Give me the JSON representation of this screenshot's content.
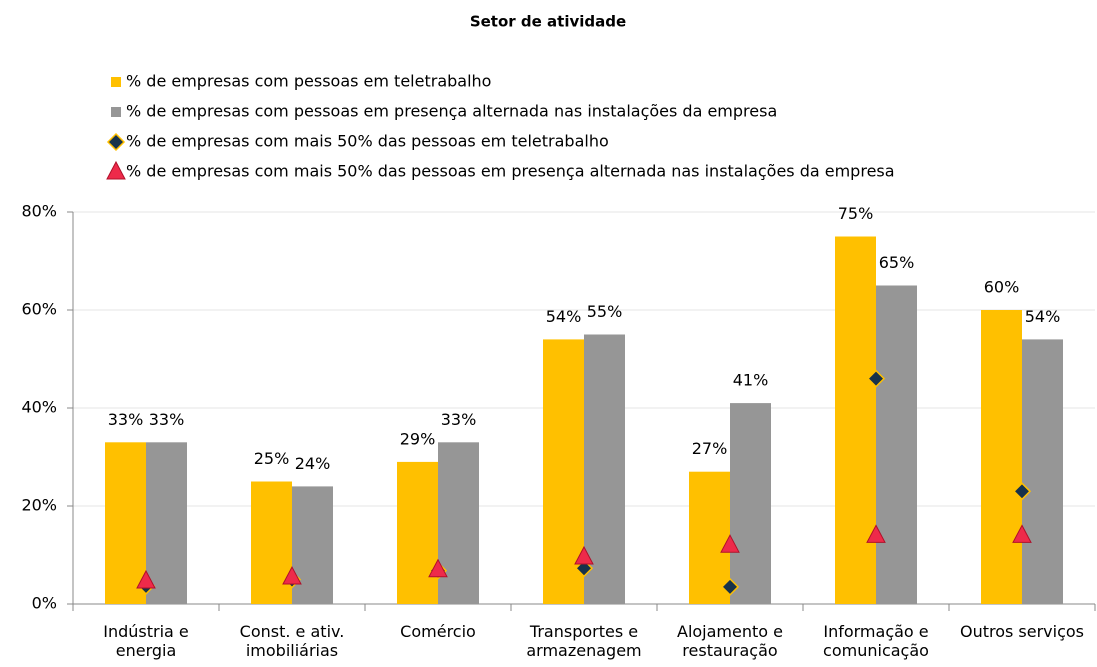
{
  "chart_data": {
    "type": "bar",
    "title": "Setor de atividade",
    "categories": [
      "Indústria e energia",
      "Const. e ativ. imobiliárias",
      "Comércio",
      "Transportes e armazenagem",
      "Alojamento e restauração",
      "Informação e comunicação",
      "Outros serviços"
    ],
    "series": [
      {
        "name": "% de empresas com pessoas em teletrabalho",
        "color": "#FFC000",
        "values": [
          33,
          25,
          29,
          54,
          27,
          75,
          60
        ],
        "value_labels": [
          "33%",
          "25%",
          "29%",
          "54%",
          "27%",
          "75%",
          "60%"
        ]
      },
      {
        "name": "% de empresas com pessoas em presença alternada nas instalações da empresa",
        "color": "#969696",
        "values": [
          33,
          24,
          33,
          55,
          41,
          65,
          54
        ],
        "value_labels": [
          "33%",
          "24%",
          "33%",
          "55%",
          "41%",
          "65%",
          "54%"
        ]
      },
      {
        "name": "% de empresas com mais 50% das pessoas em teletrabalho",
        "color": "#17324A",
        "marker": "diamond",
        "values": [
          3.7,
          5,
          6.8,
          7.3,
          3.5,
          46,
          23
        ]
      },
      {
        "name": "% de empresas com mais 50% das pessoas em presença alternada nas instalações da empresa",
        "color": "#EE2A4A",
        "marker": "triangle",
        "values": [
          4.7,
          5.5,
          7,
          9.6,
          12,
          14,
          14
        ]
      }
    ],
    "ylim": [
      0,
      80
    ],
    "yticks": [
      {
        "value": 0,
        "label": "0%"
      },
      {
        "value": 20,
        "label": "20%"
      },
      {
        "value": 40,
        "label": "40%"
      },
      {
        "value": 60,
        "label": "60%"
      },
      {
        "value": 80,
        "label": "80%"
      }
    ],
    "grid": true
  }
}
